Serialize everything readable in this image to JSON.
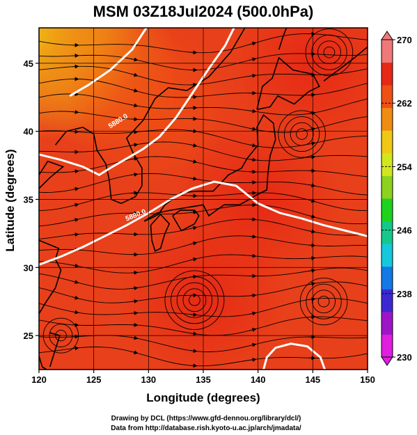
{
  "chart_data": {
    "type": "heatmap",
    "title": "MSM 03Z18Jul2024 (500.0hPa)",
    "xlabel": "Longitude (degrees)",
    "ylabel": "Latitude  (degrees)",
    "xlim": [
      120,
      150
    ],
    "ylim": [
      22.5,
      47.6
    ],
    "xticks": [
      120,
      125,
      130,
      135,
      140,
      145,
      150
    ],
    "yticks": [
      25,
      30,
      35,
      40,
      45
    ],
    "xtick_labels": [
      "120",
      "125",
      "130",
      "135",
      "140",
      "145",
      "150"
    ],
    "ytick_labels": [
      "25",
      "30",
      "35",
      "40",
      "45"
    ],
    "grid": true,
    "colorbar": {
      "range": [
        230,
        270
      ],
      "ticks": [
        230,
        238,
        246,
        254,
        262,
        270
      ],
      "tick_labels": [
        "230",
        "238",
        "246",
        "254",
        "262",
        "270"
      ],
      "placement": "right",
      "colors": [
        "#e01ee0",
        "#a014c8",
        "#3c28d2",
        "#1478e6",
        "#14c8dc",
        "#14c88c",
        "#1ed21e",
        "#8cd21e",
        "#d2e61e",
        "#f0c814",
        "#f08c14",
        "#f05014",
        "#e62814",
        "#f07878"
      ]
    },
    "field_description_levels": [
      {
        "lon": 120,
        "lat": 47,
        "value": 258
      },
      {
        "lon": 125,
        "lat": 45,
        "value": 262
      },
      {
        "lon": 130,
        "lat": 42,
        "value": 265
      },
      {
        "lon": 140,
        "lat": 35,
        "value": 267
      },
      {
        "lon": 135,
        "lat": 28,
        "value": 268
      },
      {
        "lon": 145,
        "lat": 45,
        "value": 267
      }
    ],
    "contours": [
      {
        "label": "5880.0",
        "points": [
          [
            120,
            38.3
          ],
          [
            122,
            37.9
          ],
          [
            124,
            37.4
          ],
          [
            125.5,
            36.8
          ],
          [
            126.5,
            37.3
          ],
          [
            128,
            38.0
          ],
          [
            129.5,
            38.7
          ],
          [
            131,
            39.6
          ],
          [
            132.5,
            41.0
          ],
          [
            134,
            42.8
          ],
          [
            135.5,
            44.6
          ],
          [
            137,
            46.3
          ],
          [
            137.8,
            47.6
          ]
        ]
      },
      {
        "label": "",
        "points": [
          [
            122.8,
            42.6
          ],
          [
            124.5,
            43.4
          ],
          [
            126.5,
            44.5
          ],
          [
            128.5,
            46.0
          ],
          [
            129.8,
            47.6
          ]
        ]
      },
      {
        "label": "5880.0",
        "points": [
          [
            120,
            30.2
          ],
          [
            122,
            30.8
          ],
          [
            124,
            31.5
          ],
          [
            126,
            32.3
          ],
          [
            128,
            33.1
          ],
          [
            130,
            34.0
          ],
          [
            132,
            35.0
          ],
          [
            134,
            35.8
          ],
          [
            136,
            36.3
          ],
          [
            138,
            36.0
          ],
          [
            140,
            34.7
          ],
          [
            142,
            34.0
          ],
          [
            144,
            33.6
          ],
          [
            146,
            33.1
          ],
          [
            148,
            32.7
          ],
          [
            150,
            32.3
          ]
        ]
      },
      {
        "label": "",
        "points": [
          [
            140.5,
            22.5
          ],
          [
            140.8,
            23.4
          ],
          [
            141.6,
            24.1
          ],
          [
            143,
            24.4
          ],
          [
            144.5,
            24.2
          ],
          [
            145.7,
            23.4
          ],
          [
            146.1,
            22.5
          ]
        ]
      }
    ]
  },
  "credits": [
    "Drawing by DCL (https://www.gfd-dennou.org/library/dcl/)",
    "Data from http://database.rish.kyoto-u.ac.jp/arch/jmadata/"
  ]
}
